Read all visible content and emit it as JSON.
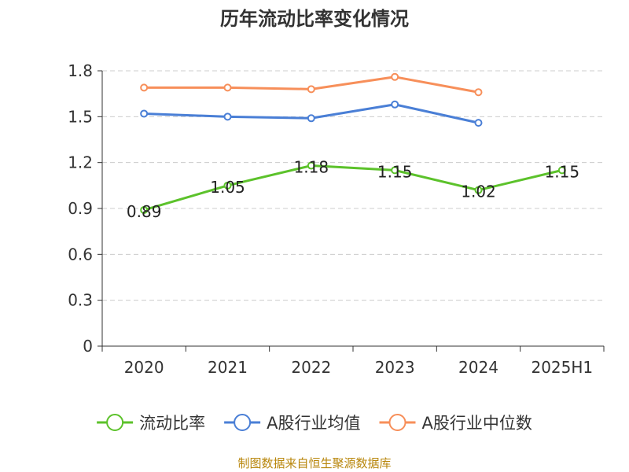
{
  "chart_data": {
    "type": "line",
    "title": "历年流动比率变化情况",
    "categories": [
      "2020",
      "2021",
      "2022",
      "2023",
      "2024",
      "2025H1"
    ],
    "yticks": [
      "0",
      "0.3",
      "0.6",
      "0.9",
      "1.2",
      "1.5",
      "1.8"
    ],
    "ylim": [
      0,
      1.8
    ],
    "grid": true,
    "legend_position": "bottom",
    "series": [
      {
        "name": "流动比率",
        "color": "#5cc22b",
        "values": [
          0.89,
          1.05,
          1.18,
          1.15,
          1.02,
          1.15
        ],
        "labels": [
          "0.89",
          "1.05",
          "1.18",
          "1.15",
          "1.02",
          "1.15"
        ]
      },
      {
        "name": "A股行业均值",
        "color": "#4a7fd6",
        "values": [
          1.52,
          1.5,
          1.49,
          1.58,
          1.46,
          null
        ]
      },
      {
        "name": "A股行业中位数",
        "color": "#f78f5a",
        "values": [
          1.69,
          1.69,
          1.68,
          1.76,
          1.66,
          null
        ]
      }
    ]
  },
  "source_text": "制图数据来自恒生聚源数据库"
}
